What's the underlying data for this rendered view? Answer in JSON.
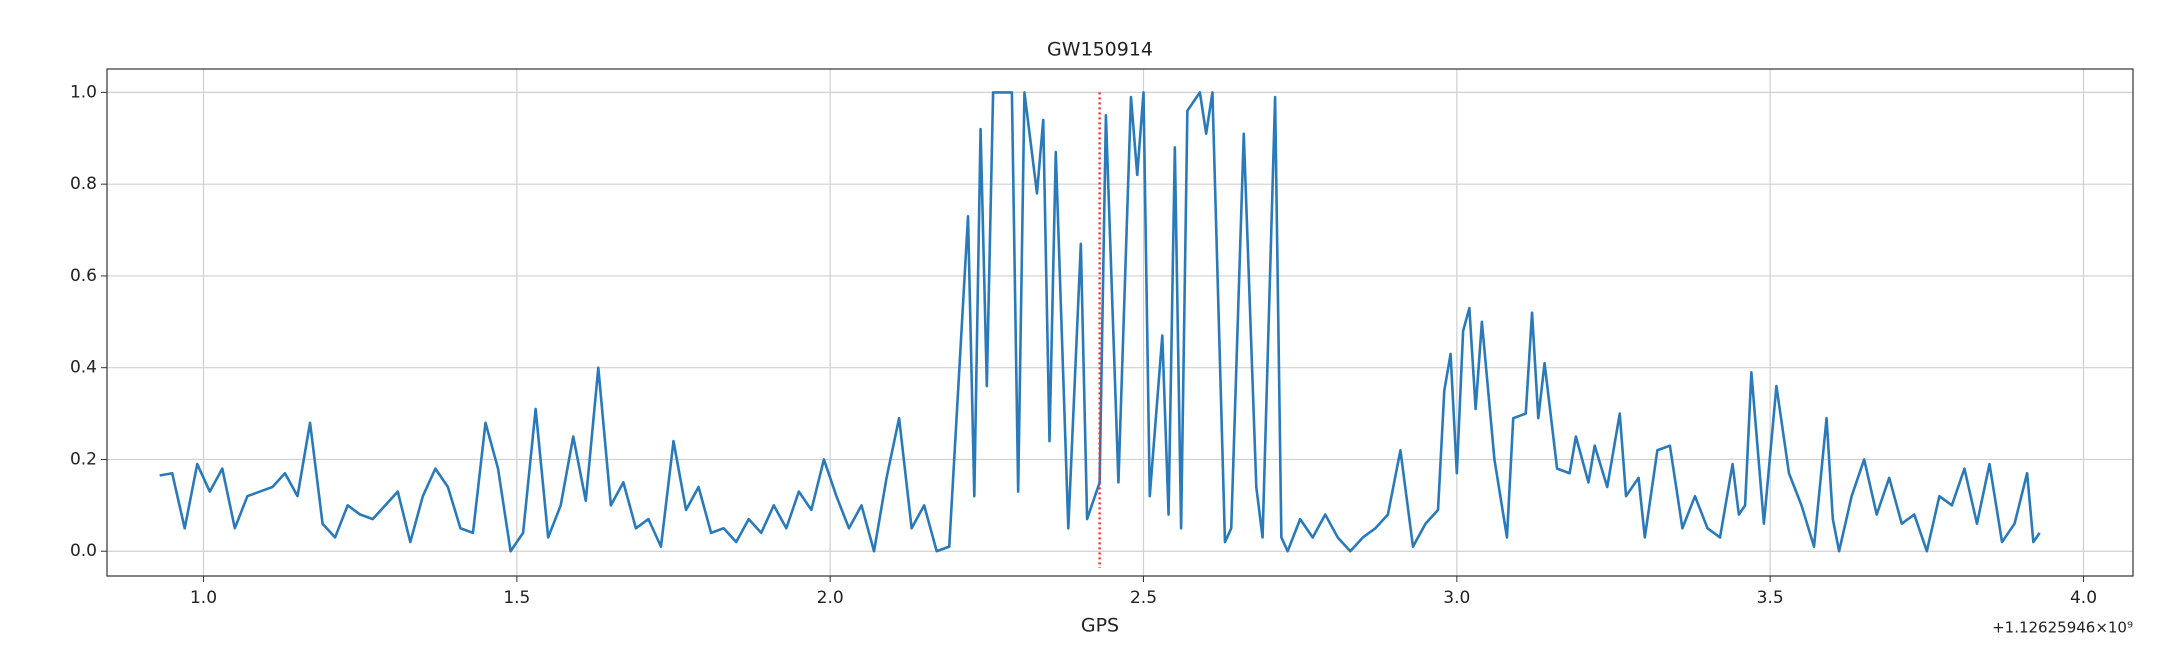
{
  "chart_data": {
    "type": "line",
    "title": "GW150914",
    "xlabel": "GPS",
    "x_offset_label": "+1.12625946×10⁹",
    "grid": true,
    "xlim": [
      0.846,
      4.079
    ],
    "ylim": [
      -0.054,
      1.051
    ],
    "xticks": [
      {
        "value": 1.0,
        "label": "1.0"
      },
      1.5,
      {
        "value": 2.0,
        "label": "2.0"
      },
      2.5,
      {
        "value": 3.0,
        "label": "3.0"
      },
      3.5,
      {
        "value": 4.0,
        "label": "4.0"
      }
    ],
    "yticks": [
      {
        "value": 0.0,
        "label": "0.0"
      },
      0.2,
      0.4,
      0.6,
      0.8,
      {
        "value": 1.0,
        "label": "1.0"
      }
    ],
    "vline": {
      "x": 2.43,
      "color": "#e8312f"
    },
    "series": [
      {
        "color": "#2a7ab9",
        "x": [
          0.93,
          0.95,
          0.97,
          0.99,
          1.01,
          1.03,
          1.05,
          1.07,
          1.09,
          1.11,
          1.13,
          1.15,
          1.17,
          1.19,
          1.21,
          1.23,
          1.25,
          1.27,
          1.29,
          1.31,
          1.33,
          1.35,
          1.37,
          1.39,
          1.41,
          1.43,
          1.45,
          1.47,
          1.49,
          1.51,
          1.53,
          1.55,
          1.57,
          1.59,
          1.61,
          1.63,
          1.65,
          1.67,
          1.69,
          1.71,
          1.73,
          1.75,
          1.77,
          1.79,
          1.81,
          1.83,
          1.85,
          1.87,
          1.89,
          1.91,
          1.93,
          1.95,
          1.97,
          1.99,
          2.01,
          2.03,
          2.05,
          2.07,
          2.09,
          2.11,
          2.13,
          2.15,
          2.17,
          2.19,
          2.22,
          2.23,
          2.24,
          2.25,
          2.26,
          2.29,
          2.3,
          2.31,
          2.33,
          2.34,
          2.35,
          2.36,
          2.38,
          2.4,
          2.41,
          2.43,
          2.44,
          2.46,
          2.48,
          2.49,
          2.5,
          2.51,
          2.53,
          2.54,
          2.55,
          2.56,
          2.57,
          2.59,
          2.6,
          2.61,
          2.63,
          2.64,
          2.66,
          2.68,
          2.69,
          2.71,
          2.72,
          2.73,
          2.75,
          2.77,
          2.79,
          2.81,
          2.83,
          2.85,
          2.87,
          2.89,
          2.91,
          2.93,
          2.95,
          2.97,
          2.98,
          2.99,
          3.0,
          3.01,
          3.02,
          3.03,
          3.04,
          3.06,
          3.08,
          3.09,
          3.11,
          3.12,
          3.13,
          3.14,
          3.16,
          3.18,
          3.19,
          3.21,
          3.22,
          3.24,
          3.26,
          3.27,
          3.29,
          3.3,
          3.32,
          3.34,
          3.36,
          3.38,
          3.4,
          3.42,
          3.44,
          3.45,
          3.46,
          3.47,
          3.49,
          3.51,
          3.53,
          3.55,
          3.57,
          3.59,
          3.6,
          3.61,
          3.63,
          3.65,
          3.67,
          3.69,
          3.71,
          3.73,
          3.75,
          3.77,
          3.79,
          3.81,
          3.83,
          3.85,
          3.87,
          3.89,
          3.91,
          3.92,
          3.93
        ],
        "values": [
          0.165,
          0.17,
          0.05,
          0.19,
          0.13,
          0.18,
          0.05,
          0.12,
          0.13,
          0.14,
          0.17,
          0.12,
          0.28,
          0.06,
          0.03,
          0.1,
          0.08,
          0.07,
          0.1,
          0.13,
          0.02,
          0.12,
          0.18,
          0.14,
          0.05,
          0.04,
          0.28,
          0.18,
          0.0,
          0.04,
          0.31,
          0.03,
          0.1,
          0.25,
          0.11,
          0.4,
          0.1,
          0.15,
          0.05,
          0.07,
          0.01,
          0.24,
          0.09,
          0.14,
          0.04,
          0.05,
          0.02,
          0.07,
          0.04,
          0.1,
          0.05,
          0.13,
          0.09,
          0.2,
          0.12,
          0.05,
          0.1,
          0.0,
          0.16,
          0.29,
          0.05,
          0.1,
          0.0,
          0.01,
          0.73,
          0.12,
          0.92,
          0.36,
          1.0,
          1.0,
          0.13,
          1.0,
          0.78,
          0.94,
          0.24,
          0.87,
          0.05,
          0.67,
          0.07,
          0.15,
          0.95,
          0.15,
          0.99,
          0.82,
          1.0,
          0.12,
          0.47,
          0.08,
          0.88,
          0.05,
          0.96,
          1.0,
          0.91,
          1.0,
          0.02,
          0.05,
          0.91,
          0.14,
          0.03,
          0.99,
          0.03,
          0.0,
          0.07,
          0.03,
          0.08,
          0.03,
          0.0,
          0.03,
          0.05,
          0.08,
          0.22,
          0.01,
          0.06,
          0.09,
          0.35,
          0.43,
          0.17,
          0.48,
          0.53,
          0.31,
          0.5,
          0.2,
          0.03,
          0.29,
          0.3,
          0.52,
          0.29,
          0.41,
          0.18,
          0.17,
          0.25,
          0.15,
          0.23,
          0.14,
          0.3,
          0.12,
          0.16,
          0.03,
          0.22,
          0.23,
          0.05,
          0.12,
          0.05,
          0.03,
          0.19,
          0.08,
          0.1,
          0.39,
          0.06,
          0.36,
          0.17,
          0.1,
          0.01,
          0.29,
          0.07,
          0.0,
          0.12,
          0.2,
          0.08,
          0.16,
          0.06,
          0.08,
          0.0,
          0.12,
          0.1,
          0.18,
          0.06,
          0.19,
          0.02,
          0.06,
          0.17,
          0.02,
          0.04
        ]
      }
    ]
  }
}
